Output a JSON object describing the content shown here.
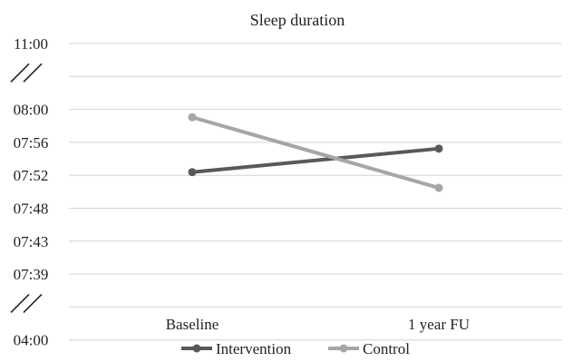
{
  "chart_data": {
    "type": "line",
    "title": "Sleep duration",
    "categories": [
      "Baseline",
      "1 year FU"
    ],
    "y_ticks": [
      "04:00",
      "",
      "07:39",
      "07:43",
      "07:48",
      "07:52",
      "07:56",
      "08:00",
      "",
      "11:00"
    ],
    "axis_breaks": [
      "04:00-07:39",
      "08:00-11:00"
    ],
    "grid": "horizontal",
    "legend_position": "bottom",
    "series": [
      {
        "name": "Intervention",
        "color": "#595959",
        "values": [
          "07:52",
          "07:55"
        ]
      },
      {
        "name": "Control",
        "color": "#a6a6a6",
        "values": [
          "07:59",
          "07:50"
        ]
      }
    ]
  }
}
